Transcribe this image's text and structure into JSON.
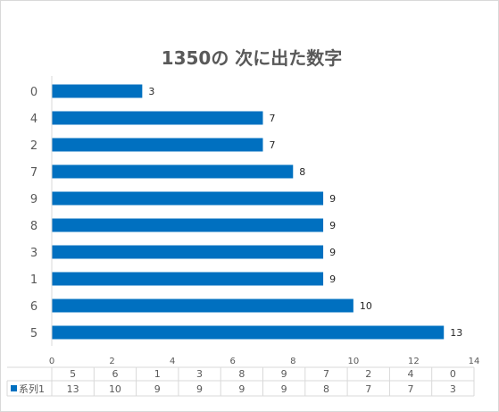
{
  "chart_data": {
    "type": "bar",
    "orientation": "horizontal",
    "title": "1350の 次に出た数字",
    "categories": [
      "5",
      "6",
      "1",
      "3",
      "8",
      "9",
      "7",
      "2",
      "4",
      "0"
    ],
    "series": [
      {
        "name": "系列1",
        "values": [
          13,
          10,
          9,
          9,
          9,
          9,
          8,
          7,
          7,
          3
        ],
        "color": "#0070C0"
      }
    ],
    "xlim": [
      0,
      14
    ],
    "xticks": [
      0,
      2,
      4,
      6,
      8,
      10,
      12,
      14
    ],
    "grid": false,
    "data_labels": true,
    "data_table": true,
    "legend": "data-table"
  }
}
